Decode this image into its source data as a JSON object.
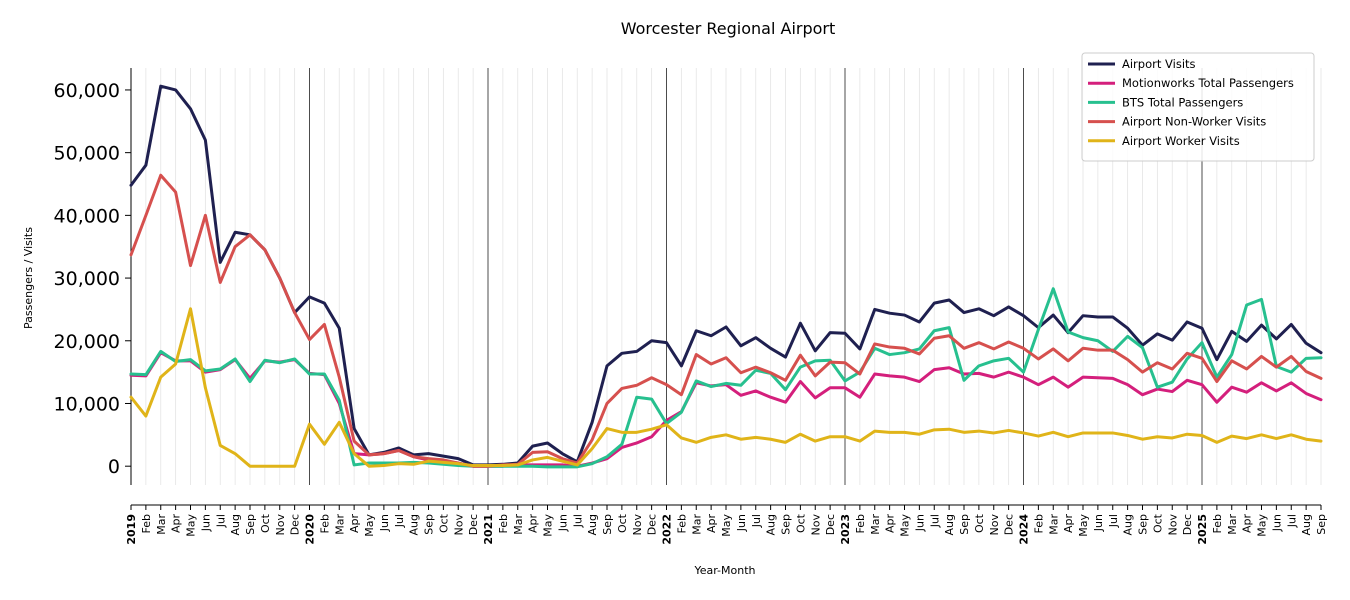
{
  "chart_data": {
    "type": "line",
    "title": "Worcester Regional Airport",
    "xlabel": "Year-Month",
    "ylabel": "Passengers / Visits",
    "ylim": [
      -3000,
      63500
    ],
    "yticks": [
      0,
      10000,
      20000,
      30000,
      40000,
      50000,
      60000
    ],
    "ytick_labels": [
      "0",
      "10,000",
      "20,000",
      "30,000",
      "40,000",
      "50,000",
      "60,000"
    ],
    "legend_position": "top-right",
    "grid": "vertical-monthly",
    "categories": [
      "2019",
      "Feb",
      "Mar",
      "Apr",
      "May",
      "Jun",
      "Jul",
      "Aug",
      "Sep",
      "Oct",
      "Nov",
      "Dec",
      "2020",
      "Feb",
      "Mar",
      "Apr",
      "May",
      "Jun",
      "Jul",
      "Aug",
      "Sep",
      "Oct",
      "Nov",
      "Dec",
      "2021",
      "Feb",
      "Mar",
      "Apr",
      "May",
      "Jun",
      "Jul",
      "Aug",
      "Sep",
      "Oct",
      "Nov",
      "Dec",
      "2022",
      "Feb",
      "Mar",
      "Apr",
      "May",
      "Jun",
      "Jul",
      "Aug",
      "Sep",
      "Oct",
      "Nov",
      "Dec",
      "2023",
      "Feb",
      "Mar",
      "Apr",
      "May",
      "Jun",
      "Jul",
      "Aug",
      "Sep",
      "Oct",
      "Nov",
      "Dec",
      "2024",
      "Feb",
      "Mar",
      "Apr",
      "May",
      "Jun",
      "Jul",
      "Aug",
      "Sep",
      "Oct",
      "Nov",
      "Dec",
      "2025",
      "Feb",
      "Mar",
      "Apr",
      "May",
      "Jun",
      "Jul",
      "Aug",
      "Sep"
    ],
    "series": [
      {
        "name": "Airport Visits",
        "color": "#1f2050",
        "values": [
          44800,
          48000,
          60600,
          60000,
          57000,
          52000,
          32500,
          37300,
          36900,
          34500,
          30000,
          24500,
          27000,
          26000,
          22000,
          6000,
          1800,
          2200,
          2900,
          1800,
          2000,
          1600,
          1200,
          200,
          200,
          300,
          500,
          3200,
          3700,
          2000,
          700,
          7000,
          16000,
          18000,
          18300,
          20000,
          19700,
          16000,
          21600,
          20800,
          22200,
          19200,
          20500,
          18800,
          17400,
          22800,
          18400,
          21300,
          21200,
          18700,
          25000,
          24400,
          24100,
          23000,
          26000,
          26500,
          24500,
          25100,
          24000,
          25400,
          24000,
          22100,
          24100,
          21300,
          24000,
          23800,
          23800,
          22000,
          19300,
          21100,
          20100,
          23000,
          22000,
          17000,
          21500,
          19900,
          22500,
          20300,
          22600,
          19600,
          18100
        ]
      },
      {
        "name": "Motionworks Total Passengers",
        "color": "#d41f7c",
        "values": [
          14500,
          14400,
          18100,
          16800,
          16800,
          15000,
          15400,
          17000,
          14000,
          16800,
          16600,
          17000,
          14800,
          14600,
          10000,
          2000,
          1800,
          2000,
          2500,
          1500,
          1000,
          800,
          500,
          0,
          0,
          0,
          200,
          200,
          200,
          200,
          0,
          500,
          1200,
          3000,
          3700,
          4700,
          7300,
          8700,
          13300,
          12800,
          13000,
          11300,
          12000,
          11000,
          10200,
          13500,
          10900,
          12500,
          12500,
          11000,
          14700,
          14400,
          14200,
          13500,
          15400,
          15700,
          14700,
          14800,
          14200,
          15000,
          14200,
          13000,
          14200,
          12600,
          14200,
          14100,
          14000,
          13000,
          11400,
          12300,
          11900,
          13700,
          13000,
          10200,
          12600,
          11800,
          13300,
          12000,
          13300,
          11600,
          10600
        ]
      },
      {
        "name": "BTS Total Passengers",
        "color": "#27c08f",
        "values": [
          14700,
          14600,
          18300,
          16700,
          17000,
          15200,
          15500,
          17100,
          13500,
          16900,
          16500,
          17100,
          14700,
          14700,
          10500,
          200,
          500,
          500,
          500,
          600,
          500,
          300,
          100,
          0,
          0,
          0,
          0,
          0,
          -100,
          -100,
          -100,
          400,
          1500,
          3500,
          11000,
          10700,
          6800,
          8600,
          13600,
          12700,
          13200,
          12900,
          15300,
          14800,
          12200,
          15800,
          16800,
          16900,
          13600,
          15000,
          18800,
          17800,
          18100,
          18700,
          21600,
          22100,
          13700,
          16000,
          16800,
          17200,
          15000,
          21800,
          28300,
          21400,
          20500,
          20000,
          18300,
          20700,
          18900,
          12600,
          13400,
          17100,
          19700,
          14200,
          17800,
          25700,
          26600,
          15900,
          15000,
          17200,
          17300
        ]
      },
      {
        "name": "Airport Non-Worker Visits",
        "color": "#d6504e",
        "values": [
          33700,
          40000,
          46400,
          43700,
          32000,
          40000,
          29300,
          35000,
          36900,
          34500,
          30000,
          24500,
          20200,
          22600,
          14200,
          4000,
          1800,
          2000,
          2500,
          1500,
          1200,
          1000,
          500,
          0,
          0,
          200,
          300,
          2200,
          2300,
          1200,
          500,
          4200,
          10000,
          12400,
          12900,
          14100,
          13000,
          11400,
          17800,
          16300,
          17300,
          14900,
          15800,
          14900,
          13700,
          17700,
          14400,
          16600,
          16500,
          14700,
          19500,
          19000,
          18800,
          17900,
          20400,
          20800,
          18800,
          19700,
          18700,
          19800,
          18800,
          17100,
          18700,
          16800,
          18800,
          18500,
          18500,
          17000,
          15000,
          16500,
          15500,
          18000,
          17200,
          13500,
          16800,
          15500,
          17500,
          15800,
          17500,
          15100,
          14000
        ]
      },
      {
        "name": "Airport Worker Visits",
        "color": "#e0b419",
        "values": [
          11000,
          8000,
          14200,
          16300,
          25100,
          12500,
          3300,
          2000,
          0,
          0,
          0,
          0,
          6700,
          3500,
          7000,
          2000,
          0,
          100,
          400,
          300,
          800,
          600,
          400,
          100,
          100,
          100,
          200,
          1000,
          1400,
          800,
          200,
          2800,
          6000,
          5400,
          5400,
          5900,
          6600,
          4500,
          3800,
          4600,
          5000,
          4300,
          4600,
          4300,
          3800,
          5100,
          4000,
          4700,
          4700,
          4000,
          5600,
          5400,
          5400,
          5100,
          5800,
          5900,
          5400,
          5600,
          5300,
          5700,
          5300,
          4800,
          5400,
          4700,
          5300,
          5300,
          5300,
          4900,
          4300,
          4700,
          4500,
          5100,
          4900,
          3800,
          4800,
          4400,
          5000,
          4400,
          5000,
          4300,
          4000
        ]
      }
    ]
  }
}
